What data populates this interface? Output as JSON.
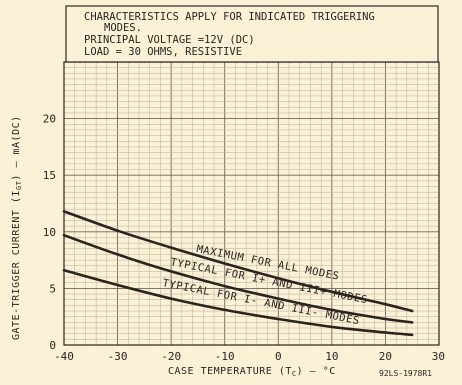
{
  "chart_data": {
    "type": "line",
    "title": "",
    "notes": [
      "CHARACTERISTICS APPLY FOR INDICATED TRIGGERING",
      "MODES.",
      "PRINCIPAL VOLTAGE =12V (DC)",
      "LOAD = 30 OHMS, RESISTIVE"
    ],
    "xlabel": "CASE TEMPERATURE (T",
    "xlabel_sub": "C",
    "xlabel_unit": ") — °C",
    "ylabel": "GATE-TRIGGER CURRENT (I",
    "ylabel_sub": "GT",
    "ylabel_unit": ") — mA(DC)",
    "xlim": [
      -40,
      30
    ],
    "ylim": [
      0,
      25
    ],
    "x_ticks": [
      -40,
      -30,
      -20,
      -10,
      0,
      10,
      20,
      30
    ],
    "x_tick_labels": [
      "-40",
      "-30",
      "-20",
      "-10",
      "0",
      "10",
      "20",
      "30"
    ],
    "y_ticks": [
      0,
      5,
      10,
      15,
      20
    ],
    "y_tick_labels": [
      "0",
      "5",
      "10",
      "15",
      "20"
    ],
    "grid": true,
    "series": [
      {
        "name": "MAXIMUM FOR ALL MODES",
        "x": [
          -40,
          -30,
          -20,
          -10,
          0,
          10,
          20,
          25
        ],
        "y": [
          11.8,
          10.1,
          8.6,
          7.2,
          5.9,
          4.7,
          3.6,
          3.0
        ]
      },
      {
        "name": "TYPICAL FOR I+ AND III+ MODES",
        "x": [
          -40,
          -30,
          -20,
          -10,
          0,
          10,
          20,
          25
        ],
        "y": [
          9.7,
          8.0,
          6.5,
          5.2,
          4.1,
          3.1,
          2.3,
          2.0
        ]
      },
      {
        "name": "TYPICAL FOR I- AND III- MODES",
        "x": [
          -40,
          -30,
          -20,
          -10,
          0,
          10,
          20,
          25
        ],
        "y": [
          6.6,
          5.3,
          4.1,
          3.1,
          2.3,
          1.6,
          1.1,
          0.9
        ]
      }
    ],
    "figure_id": "92LS-1978R1"
  },
  "colors": {
    "paper": "#fbf1d6",
    "grid_fine": "#b9ad98",
    "grid_major": "#6f665a",
    "ink": "#2a2420"
  }
}
